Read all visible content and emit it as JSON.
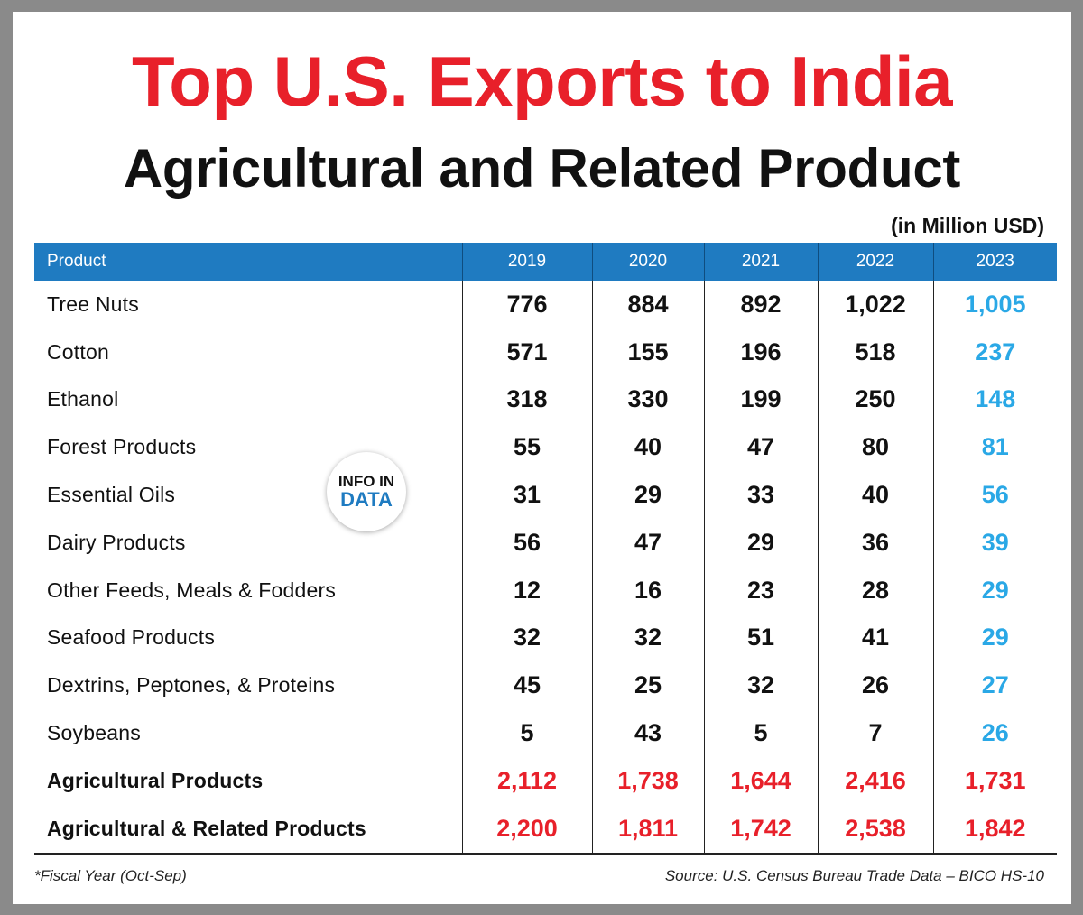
{
  "chart_data": {
    "type": "table",
    "title": "Top U.S. Exports to India",
    "subtitle": "Agricultural and Related Product",
    "unit": "(in Million USD)",
    "columns": [
      "Product",
      "2019",
      "2020",
      "2021",
      "2022",
      "2023"
    ],
    "rows": [
      {
        "product": "Tree Nuts",
        "values": [
          "776",
          "884",
          "892",
          "1,022",
          "1,005"
        ]
      },
      {
        "product": "Cotton",
        "values": [
          "571",
          "155",
          "196",
          "518",
          "237"
        ]
      },
      {
        "product": "Ethanol",
        "values": [
          "318",
          "330",
          "199",
          "250",
          "148"
        ]
      },
      {
        "product": "Forest Products",
        "values": [
          "55",
          "40",
          "47",
          "80",
          "81"
        ]
      },
      {
        "product": "Essential Oils",
        "values": [
          "31",
          "29",
          "33",
          "40",
          "56"
        ]
      },
      {
        "product": "Dairy Products",
        "values": [
          "56",
          "47",
          "29",
          "36",
          "39"
        ]
      },
      {
        "product": "Other Feeds, Meals & Fodders",
        "values": [
          "12",
          "16",
          "23",
          "28",
          "29"
        ]
      },
      {
        "product": "Seafood Products",
        "values": [
          "32",
          "32",
          "51",
          "41",
          "29"
        ]
      },
      {
        "product": "Dextrins, Peptones, & Proteins",
        "values": [
          "45",
          "25",
          "32",
          "26",
          "27"
        ]
      },
      {
        "product": "Soybeans",
        "values": [
          "5",
          "43",
          "5",
          "7",
          "26"
        ]
      }
    ],
    "totals": [
      {
        "product": "Agricultural Products",
        "values": [
          "2,112",
          "1,738",
          "1,644",
          "2,416",
          "1,731"
        ]
      },
      {
        "product": "Agricultural & Related Products",
        "values": [
          "2,200",
          "1,811",
          "1,742",
          "2,538",
          "1,842"
        ]
      }
    ]
  },
  "logo": {
    "line1": "INFO IN",
    "line2": "DATA"
  },
  "footnote": "*Fiscal Year (Oct-Sep)",
  "source": "Source: U.S. Census Bureau Trade Data – BICO HS-10",
  "colors": {
    "title_red": "#e8202a",
    "header_blue": "#1f7bc1",
    "highlight_2023": "#2aa8e6",
    "total_red": "#e8202a",
    "frame_gray": "#8a8a8a"
  }
}
